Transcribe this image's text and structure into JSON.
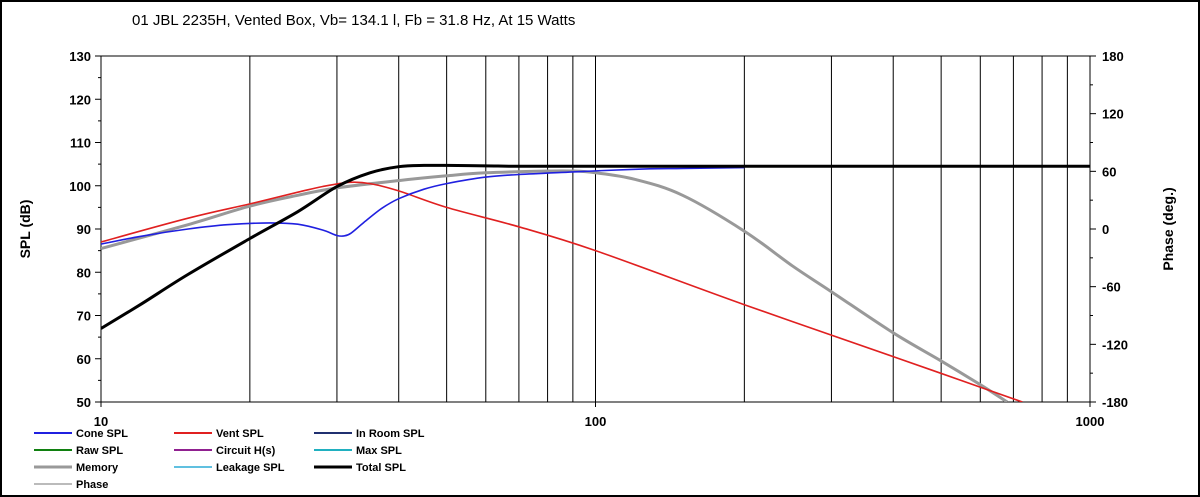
{
  "chart_data": {
    "type": "line",
    "title": "01 JBL 2235H,  Vented Box, Vb= 134.1 l,  Fb = 31.8 Hz,  At 15 Watts",
    "xlabel": "",
    "ylabel": "SPL (dB)",
    "y2label": "Phase (deg.)",
    "xscale": "log",
    "xlim": [
      10,
      1000
    ],
    "ylim": [
      50,
      130
    ],
    "y2lim": [
      -180,
      180
    ],
    "x_ticks": [
      "10",
      "100",
      "1000"
    ],
    "y_ticks": [
      "130",
      "120",
      "110",
      "100",
      "90",
      "80",
      "70",
      "60",
      "50"
    ],
    "y2_ticks": [
      "180",
      "120",
      "60",
      "0",
      "-60",
      "-120",
      "-180"
    ],
    "grid": "vertical",
    "legend_position": "bottom",
    "legend": [
      {
        "name": "Cone SPL",
        "color": "#2020e0"
      },
      {
        "name": "Vent SPL",
        "color": "#e02020"
      },
      {
        "name": "In Room SPL",
        "color": "#203070"
      },
      {
        "name": "Raw SPL",
        "color": "#108010"
      },
      {
        "name": "Circuit H(s)",
        "color": "#902090"
      },
      {
        "name": "Max SPL",
        "color": "#20b0c0"
      },
      {
        "name": "Memory",
        "color": "#999999"
      },
      {
        "name": "Leakage SPL",
        "color": "#60c0e0"
      },
      {
        "name": "Total SPL",
        "color": "#000000"
      },
      {
        "name": "Phase",
        "color": "#bbbbbb"
      }
    ],
    "series": [
      {
        "name": "Cone SPL",
        "color": "#2020e0",
        "x": [
          10,
          12,
          15,
          18,
          22,
          25,
          28,
          30,
          31,
          32,
          34,
          37,
          40,
          45,
          50,
          60,
          70,
          90,
          120,
          150,
          200
        ],
        "y": [
          86.5,
          88.3,
          90.0,
          91.0,
          91.4,
          91.1,
          89.8,
          88.5,
          88.4,
          89.0,
          91.5,
          94.8,
          97.0,
          99.2,
          100.5,
          102.0,
          102.6,
          103.2,
          103.8,
          104.0,
          104.2
        ]
      },
      {
        "name": "Vent SPL",
        "color": "#e02020",
        "x": [
          10,
          15,
          20,
          25,
          28,
          31.8,
          35,
          40,
          50,
          70,
          100,
          200,
          400,
          730
        ],
        "y": [
          87.0,
          92.5,
          95.8,
          98.5,
          99.8,
          100.8,
          100.5,
          98.8,
          95.0,
          90.5,
          85.0,
          72.5,
          60.5,
          50.0
        ]
      },
      {
        "name": "Memory",
        "color": "#999999",
        "x": [
          10,
          15,
          20,
          25,
          30,
          40,
          50,
          60,
          80,
          90,
          100,
          120,
          150,
          200,
          250,
          300,
          400,
          500,
          600,
          680
        ],
        "y": [
          85.5,
          91.0,
          95.3,
          97.8,
          99.5,
          101.2,
          102.3,
          103.0,
          103.4,
          103.4,
          103.0,
          101.5,
          97.8,
          89.5,
          81.5,
          75.5,
          66.0,
          59.5,
          54.0,
          50.0
        ]
      },
      {
        "name": "Total SPL",
        "color": "#000000",
        "x": [
          10,
          12,
          15,
          20,
          25,
          30,
          35,
          40,
          45,
          50,
          60,
          70,
          100,
          200,
          500,
          1000
        ],
        "y": [
          67.0,
          72.5,
          79.5,
          87.8,
          94.0,
          99.8,
          103.0,
          104.4,
          104.7,
          104.7,
          104.6,
          104.5,
          104.5,
          104.5,
          104.5,
          104.5
        ]
      }
    ]
  }
}
